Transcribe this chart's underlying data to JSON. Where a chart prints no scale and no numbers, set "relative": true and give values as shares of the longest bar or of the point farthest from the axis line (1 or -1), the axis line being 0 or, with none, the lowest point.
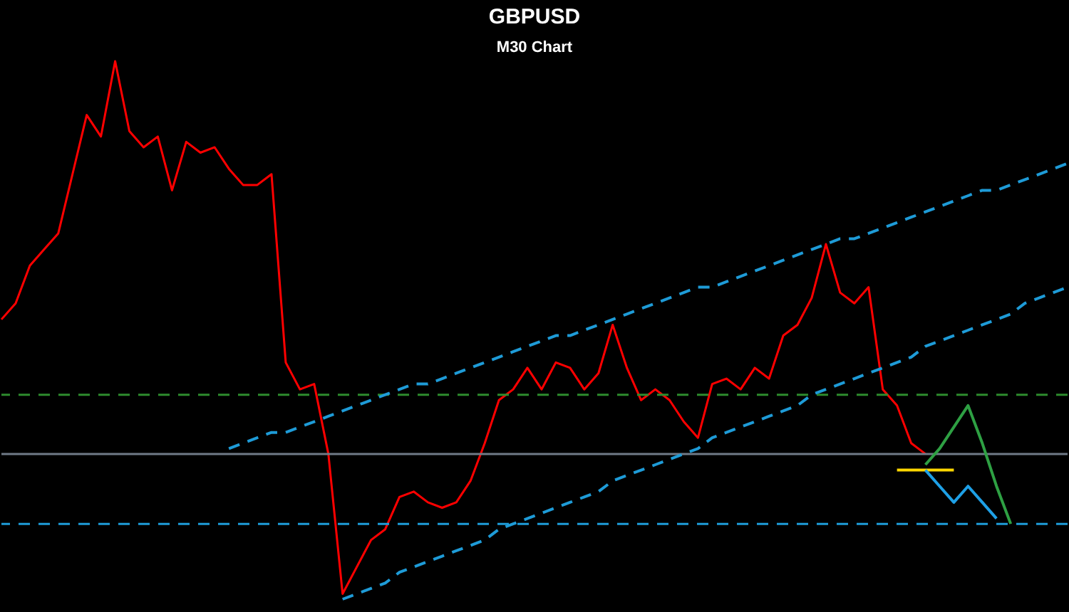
{
  "chart_data": {
    "type": "line",
    "title": "GBPUSD",
    "subtitle": "M30 Chart",
    "relative": true,
    "tick_labels": false,
    "categories": [
      null,
      null,
      null,
      null,
      null,
      null,
      null,
      null,
      null,
      null,
      null,
      null,
      null,
      null,
      null,
      null,
      null,
      null,
      null,
      null,
      null,
      null,
      null,
      null,
      null,
      null,
      null,
      null,
      null,
      null,
      null,
      null,
      null,
      null,
      null,
      null,
      null,
      null,
      null,
      null,
      null,
      null,
      null,
      null,
      null,
      null,
      null,
      null,
      null,
      null,
      null,
      null,
      null,
      null,
      null,
      null,
      null,
      null,
      null,
      null,
      null,
      null,
      null,
      null,
      null,
      null,
      null,
      null,
      null,
      null,
      null,
      null,
      null,
      null,
      null,
      null
    ],
    "series": [
      {
        "color": "#ff0000",
        "line_style": "solid",
        "values": [
          0.52,
          0.55,
          0.62,
          0.65,
          0.68,
          0.79,
          0.9,
          0.86,
          1,
          0.87,
          0.84,
          0.86,
          0.76,
          0.85,
          0.83,
          0.84,
          0.8,
          0.77,
          0.77,
          0.79,
          0.44,
          0.39,
          0.4,
          0.27,
          0.01,
          0.06,
          0.11,
          0.13,
          0.19,
          0.2,
          0.18,
          0.17,
          0.18,
          0.22,
          0.29,
          0.37,
          0.39,
          0.43,
          0.39,
          0.44,
          0.43,
          0.39,
          0.42,
          0.51,
          0.43,
          0.37,
          0.39,
          0.37,
          0.33,
          0.3,
          0.4,
          0.41,
          0.39,
          0.43,
          0.41,
          0.49,
          0.51,
          0.56,
          0.66,
          0.57,
          0.55,
          0.58,
          0.39,
          0.36,
          0.29,
          0.27,
          null,
          null,
          null,
          null,
          null,
          null,
          null,
          null,
          null,
          null
        ]
      },
      {
        "color": "#1e9bd7",
        "line_style": "dashed",
        "values": [
          null,
          null,
          null,
          null,
          null,
          null,
          null,
          null,
          null,
          null,
          null,
          null,
          null,
          null,
          null,
          null,
          0.28,
          0.29,
          0.3,
          0.31,
          0.31,
          0.32,
          0.33,
          0.34,
          0.35,
          0.36,
          0.37,
          0.38,
          0.39,
          0.4,
          0.4,
          0.41,
          0.42,
          0.43,
          0.44,
          0.45,
          0.46,
          0.47,
          0.48,
          0.49,
          0.49,
          0.5,
          0.51,
          0.52,
          0.53,
          0.54,
          0.55,
          0.56,
          0.57,
          0.58,
          0.58,
          0.59,
          0.6,
          0.61,
          0.62,
          0.63,
          0.64,
          0.65,
          0.66,
          0.67,
          0.67,
          0.68,
          0.69,
          0.7,
          0.71,
          0.72,
          0.73,
          0.74,
          0.75,
          0.76,
          0.76,
          0.77,
          0.78,
          0.79,
          0.8,
          0.81
        ]
      },
      {
        "color": "#1e9bd7",
        "line_style": "dashed",
        "values": [
          null,
          null,
          null,
          null,
          null,
          null,
          null,
          null,
          null,
          null,
          null,
          null,
          null,
          null,
          null,
          null,
          null,
          null,
          null,
          null,
          null,
          null,
          null,
          null,
          0,
          0.01,
          0.02,
          0.03,
          0.05,
          0.06,
          0.07,
          0.08,
          0.09,
          0.1,
          0.11,
          0.13,
          0.14,
          0.15,
          0.16,
          0.17,
          0.18,
          0.19,
          0.2,
          0.22,
          0.23,
          0.24,
          0.25,
          0.26,
          0.27,
          0.28,
          0.3,
          0.31,
          0.32,
          0.33,
          0.34,
          0.35,
          0.36,
          0.38,
          0.39,
          0.4,
          0.41,
          0.42,
          0.43,
          0.44,
          0.45,
          0.47,
          0.48,
          0.49,
          0.5,
          0.51,
          0.52,
          0.53,
          0.55,
          0.56,
          0.57,
          0.58
        ]
      },
      {
        "color": "#ffd700",
        "line_style": "solid",
        "values": [
          null,
          null,
          null,
          null,
          null,
          null,
          null,
          null,
          null,
          null,
          null,
          null,
          null,
          null,
          null,
          null,
          null,
          null,
          null,
          null,
          null,
          null,
          null,
          null,
          null,
          null,
          null,
          null,
          null,
          null,
          null,
          null,
          null,
          null,
          null,
          null,
          null,
          null,
          null,
          null,
          null,
          null,
          null,
          null,
          null,
          null,
          null,
          null,
          null,
          null,
          null,
          null,
          null,
          null,
          null,
          null,
          null,
          null,
          null,
          null,
          null,
          null,
          null,
          0.24,
          0.24,
          0.24,
          0.24,
          0.24,
          null,
          null,
          null,
          null,
          null,
          null,
          null,
          null
        ]
      },
      {
        "color": "#2ea043",
        "line_style": "solid",
        "values": [
          null,
          null,
          null,
          null,
          null,
          null,
          null,
          null,
          null,
          null,
          null,
          null,
          null,
          null,
          null,
          null,
          null,
          null,
          null,
          null,
          null,
          null,
          null,
          null,
          null,
          null,
          null,
          null,
          null,
          null,
          null,
          null,
          null,
          null,
          null,
          null,
          null,
          null,
          null,
          null,
          null,
          null,
          null,
          null,
          null,
          null,
          null,
          null,
          null,
          null,
          null,
          null,
          null,
          null,
          null,
          null,
          null,
          null,
          null,
          null,
          null,
          null,
          null,
          null,
          null,
          0.25,
          0.28,
          0.32,
          0.36,
          0.29,
          0.21,
          0.14,
          null,
          null,
          null,
          null
        ]
      },
      {
        "color": "#1ea0e6",
        "line_style": "solid",
        "values": [
          null,
          null,
          null,
          null,
          null,
          null,
          null,
          null,
          null,
          null,
          null,
          null,
          null,
          null,
          null,
          null,
          null,
          null,
          null,
          null,
          null,
          null,
          null,
          null,
          null,
          null,
          null,
          null,
          null,
          null,
          null,
          null,
          null,
          null,
          null,
          null,
          null,
          null,
          null,
          null,
          null,
          null,
          null,
          null,
          null,
          null,
          null,
          null,
          null,
          null,
          null,
          null,
          null,
          null,
          null,
          null,
          null,
          null,
          null,
          null,
          null,
          null,
          null,
          null,
          null,
          0.24,
          0.21,
          0.18,
          0.21,
          0.18,
          0.15,
          null,
          null,
          null,
          null,
          null
        ]
      }
    ],
    "ref_lines": [
      {
        "axis": "y",
        "value": 0.38,
        "color": "#2e8b2e",
        "line_style": "dashed"
      },
      {
        "axis": "y",
        "value": 0.27,
        "color": "#707a88",
        "line_style": "solid"
      },
      {
        "axis": "y",
        "value": 0.14,
        "color": "#1e9bd7",
        "line_style": "dashed"
      }
    ]
  }
}
